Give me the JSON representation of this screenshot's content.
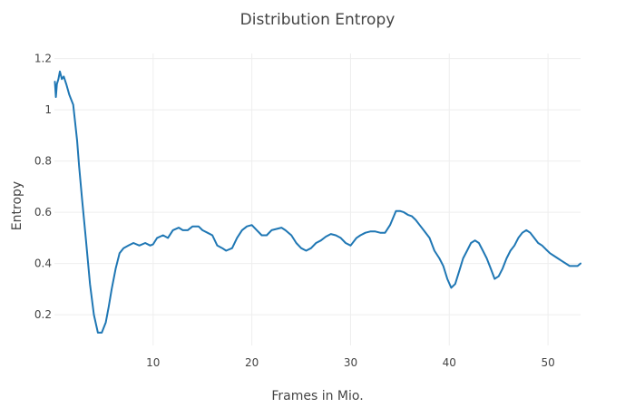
{
  "chart_data": {
    "type": "line",
    "title": "Distribution Entropy",
    "xlabel": "Frames in Mio.",
    "ylabel": "Entropy",
    "xlim": [
      0,
      53.3
    ],
    "ylim": [
      0.08,
      1.22
    ],
    "x_ticks": [
      10,
      20,
      30,
      40,
      50
    ],
    "y_ticks": [
      0.2,
      0.4,
      0.6,
      0.8,
      1,
      1.2
    ],
    "grid": true,
    "legend": "none",
    "series_color": "#1f77b4",
    "series": [
      {
        "x": [
          0.05,
          0.15,
          0.25,
          0.4,
          0.55,
          0.75,
          0.95,
          1.2,
          1.5,
          1.9,
          2.3,
          2.5,
          2.8,
          3.2,
          3.6,
          4.0,
          4.4,
          4.8,
          5.2,
          5.5,
          5.8,
          6.2,
          6.6,
          7.0,
          7.5,
          8.0,
          8.6,
          9.2,
          9.7,
          10.0,
          10.4,
          11.0,
          11.5,
          12.0,
          12.6,
          13.0,
          13.5,
          14.0,
          14.6,
          15.0,
          15.5,
          16.0,
          16.5,
          17.0,
          17.4,
          18.0,
          18.5,
          19.0,
          19.5,
          20.0,
          20.5,
          21.0,
          21.5,
          22.0,
          22.5,
          23.0,
          23.4,
          24.0,
          24.5,
          25.0,
          25.5,
          26.0,
          26.5,
          27.0,
          27.5,
          28.0,
          28.5,
          29.0,
          29.5,
          30.0,
          30.6,
          31.0,
          31.5,
          32.0,
          32.5,
          33.0,
          33.5,
          34.0,
          34.6,
          35.0,
          35.4,
          35.8,
          36.2,
          36.6,
          37.0,
          37.6,
          38.0,
          38.5,
          39.0,
          39.4,
          39.8,
          40.2,
          40.6,
          41.0,
          41.4,
          41.8,
          42.2,
          42.6,
          43.0,
          43.4,
          43.8,
          44.2,
          44.6,
          45.0,
          45.4,
          45.8,
          46.2,
          46.6,
          47.0,
          47.4,
          47.8,
          48.2,
          48.6,
          49.0,
          49.4,
          49.8,
          50.2,
          50.6,
          51.0,
          51.4,
          51.8,
          52.2,
          52.6,
          53.0,
          53.3
        ],
        "y": [
          1.11,
          1.05,
          1.1,
          1.12,
          1.15,
          1.12,
          1.13,
          1.1,
          1.06,
          1.02,
          0.88,
          0.78,
          0.65,
          0.49,
          0.32,
          0.2,
          0.13,
          0.13,
          0.17,
          0.23,
          0.3,
          0.38,
          0.44,
          0.46,
          0.47,
          0.48,
          0.47,
          0.48,
          0.47,
          0.475,
          0.5,
          0.51,
          0.5,
          0.53,
          0.54,
          0.53,
          0.53,
          0.545,
          0.545,
          0.53,
          0.52,
          0.51,
          0.47,
          0.46,
          0.45,
          0.46,
          0.5,
          0.53,
          0.545,
          0.55,
          0.53,
          0.51,
          0.51,
          0.53,
          0.535,
          0.54,
          0.53,
          0.51,
          0.48,
          0.46,
          0.45,
          0.46,
          0.48,
          0.49,
          0.505,
          0.515,
          0.51,
          0.5,
          0.48,
          0.47,
          0.5,
          0.51,
          0.52,
          0.525,
          0.525,
          0.52,
          0.52,
          0.55,
          0.605,
          0.605,
          0.6,
          0.59,
          0.585,
          0.57,
          0.55,
          0.52,
          0.5,
          0.45,
          0.42,
          0.39,
          0.34,
          0.305,
          0.32,
          0.37,
          0.42,
          0.45,
          0.48,
          0.49,
          0.48,
          0.45,
          0.42,
          0.38,
          0.34,
          0.35,
          0.38,
          0.42,
          0.45,
          0.47,
          0.5,
          0.52,
          0.53,
          0.52,
          0.5,
          0.48,
          0.47,
          0.455,
          0.44,
          0.43,
          0.42,
          0.41,
          0.4,
          0.39,
          0.39,
          0.39,
          0.4
        ]
      }
    ]
  }
}
